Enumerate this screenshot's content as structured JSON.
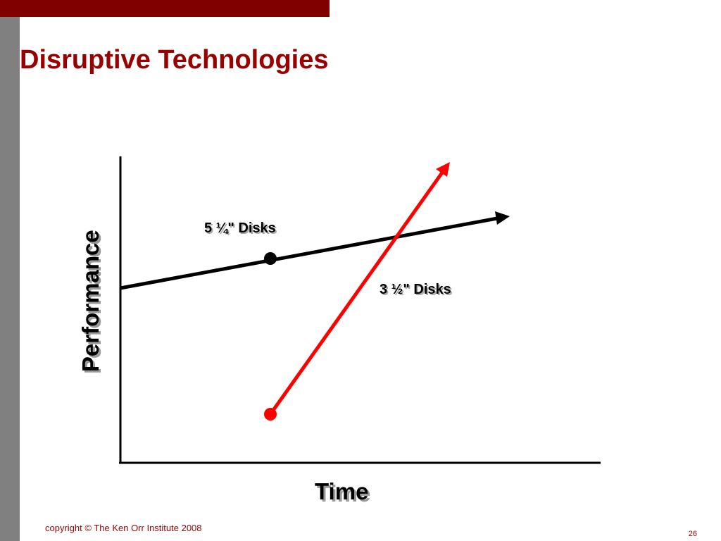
{
  "slide": {
    "title": "Disruptive Technologies",
    "footer": "copyright © The Ken Orr Institute 2008",
    "page_number": "26"
  },
  "diagram": {
    "x_axis_label": "Time",
    "y_axis_label": "Performance",
    "lines": [
      {
        "name": "5-quarter-disks",
        "label": "5 ¼\" Disks",
        "color": "#000000"
      },
      {
        "name": "3-half-disks",
        "label": "3 ½\" Disks",
        "color": "#ff0000"
      }
    ]
  },
  "colors": {
    "top_bar": "#800000",
    "left_strip": "#808080",
    "title": "#990000",
    "footer": "#990000",
    "old_tech_line": "#000000",
    "disruptive_line": "#ff0000"
  }
}
